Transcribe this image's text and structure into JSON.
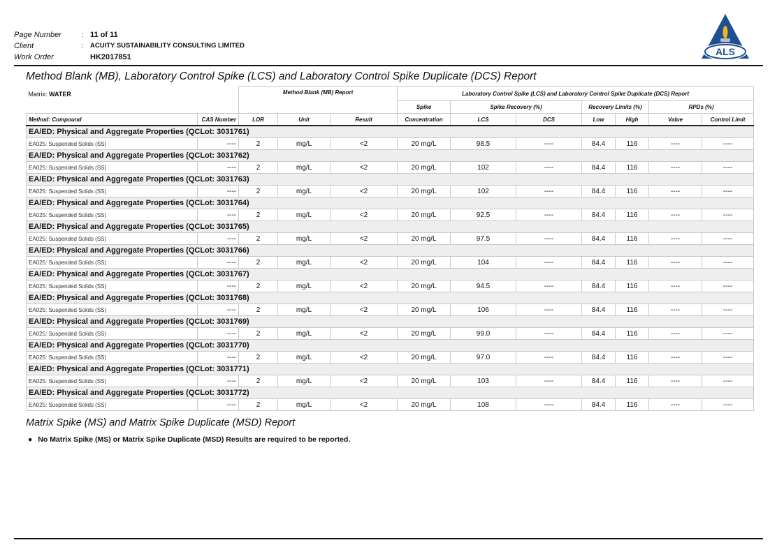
{
  "header": {
    "page_number_label": "Page Number",
    "page_number": "11 of 11",
    "client_label": "Client",
    "client": "ACUITY SUSTAINABILITY CONSULTING LIMITED",
    "work_order_label": "Work Order",
    "work_order": "HK2017851",
    "logo_text": "ALS"
  },
  "title": "Method Blank (MB), Laboratory Control Spike (LCS) and Laboratory Control Spike Duplicate (DCS) Report",
  "matrix_label": "Matrix: ",
  "matrix": "WATER",
  "columns": {
    "mb_report": "Method Blank (MB) Report",
    "lcs_report": "Laboratory Control Spike (LCS) and Laboratory Control Spike Duplicate (DCS) Report",
    "spike": "Spike",
    "concentration": "Concentration",
    "spike_recovery": "Spike Recovery (%)",
    "recovery_limits": "Recovery Limits (%)",
    "rpds": "RPDs (%)",
    "method_compound": "Method: Compound",
    "cas_number": "CAS Number",
    "lor": "LOR",
    "unit": "Unit",
    "result": "Result",
    "lcs": "LCS",
    "dcs": "DCS",
    "low": "Low",
    "high": "High",
    "value": "Value",
    "control_limit": "Control Limit"
  },
  "groups": [
    {
      "title": "EA/ED: Physical and Aggregate Properties  (QCLot: 3031761)",
      "lcs": "98.5"
    },
    {
      "title": "EA/ED: Physical and Aggregate Properties  (QCLot: 3031762)",
      "lcs": "102"
    },
    {
      "title": "EA/ED: Physical and Aggregate Properties  (QCLot: 3031763)",
      "lcs": "102"
    },
    {
      "title": "EA/ED: Physical and Aggregate Properties  (QCLot: 3031764)",
      "lcs": "92.5"
    },
    {
      "title": "EA/ED: Physical and Aggregate Properties  (QCLot: 3031765)",
      "lcs": "97.5"
    },
    {
      "title": "EA/ED: Physical and Aggregate Properties  (QCLot: 3031766)",
      "lcs": "104"
    },
    {
      "title": "EA/ED: Physical and Aggregate Properties  (QCLot: 3031767)",
      "lcs": "94.5"
    },
    {
      "title": "EA/ED: Physical and Aggregate Properties  (QCLot: 3031768)",
      "lcs": "106"
    },
    {
      "title": "EA/ED: Physical and Aggregate Properties  (QCLot: 3031769)",
      "lcs": "99.0"
    },
    {
      "title": "EA/ED: Physical and Aggregate Properties  (QCLot: 3031770)",
      "lcs": "97.0"
    },
    {
      "title": "EA/ED: Physical and Aggregate Properties  (QCLot: 3031771)",
      "lcs": "103"
    },
    {
      "title": "EA/ED: Physical and Aggregate Properties  (QCLot: 3031772)",
      "lcs": "108"
    }
  ],
  "row_common": {
    "compound": "EA025: Suspended Solids (SS)",
    "cas": "----",
    "lor": "2",
    "unit": "mg/L",
    "result": "<2",
    "spike": "20 mg/L",
    "dcs": "----",
    "low": "84.4",
    "high": "116",
    "rpd_value": "----",
    "control_limit": "----"
  },
  "ms_section": {
    "title": "Matrix Spike (MS) and Matrix Spike Duplicate (MSD) Report",
    "note": "No Matrix Spike (MS) or Matrix Spike Duplicate (MSD) Results are required to be reported.",
    "bullet_icon": "bullet-icon"
  },
  "colors": {
    "logo_blue": "#1d4f91",
    "flame": "#f2b51c",
    "group_bg": "#eeeeee"
  }
}
